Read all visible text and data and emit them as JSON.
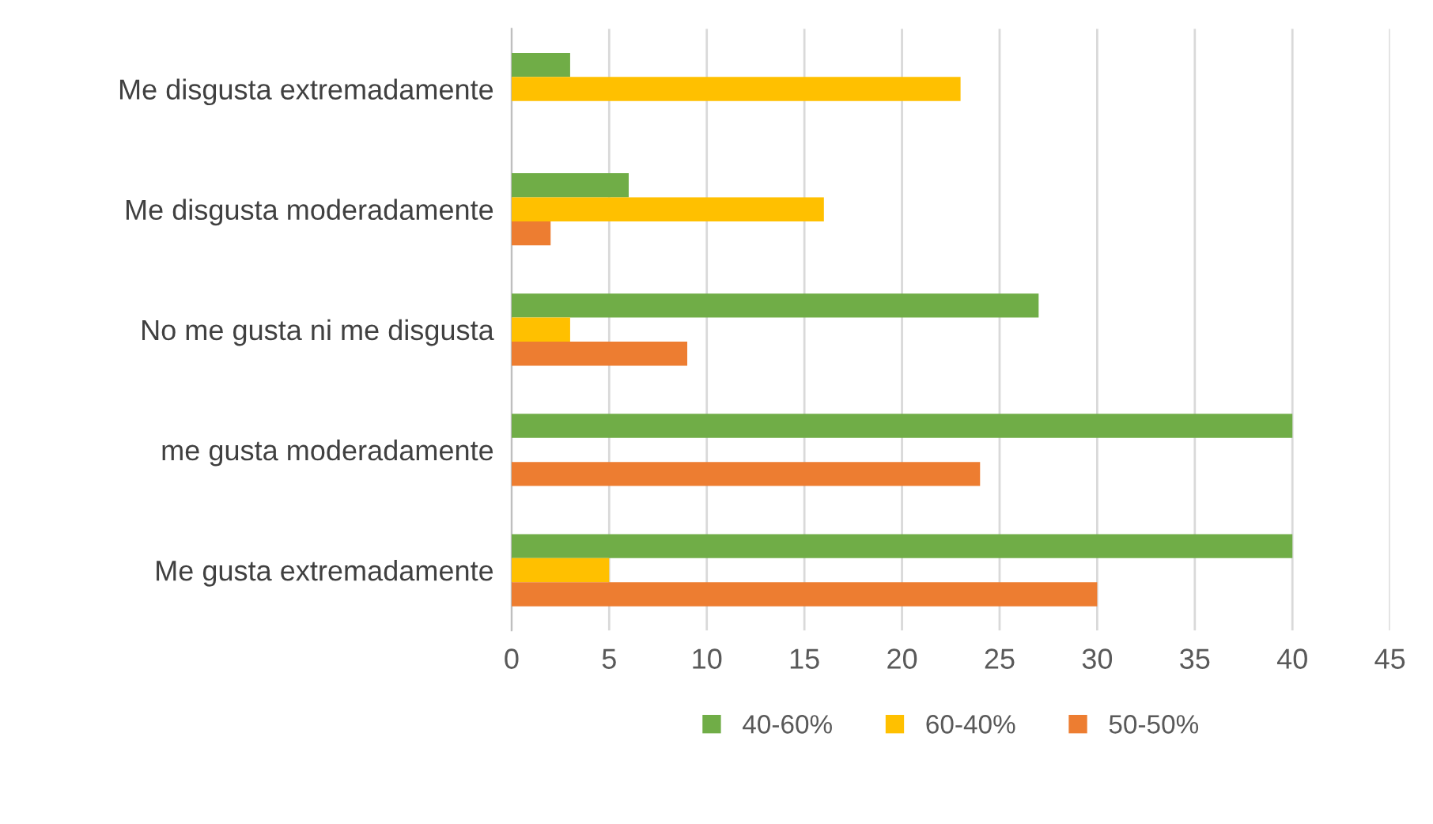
{
  "chart_data": {
    "type": "bar",
    "orientation": "horizontal",
    "categories": [
      "Me disgusta extremadamente",
      "Me disgusta moderadamente",
      "No me gusta ni me disgusta",
      "me gusta moderadamente",
      "Me gusta extremadamente"
    ],
    "series": [
      {
        "name": "40-60%",
        "color": "#70ad47",
        "values": [
          3,
          6,
          27,
          40,
          40
        ]
      },
      {
        "name": "60-40%",
        "color": "#ffc000",
        "values": [
          23,
          16,
          3,
          0,
          5
        ]
      },
      {
        "name": "50-50%",
        "color": "#ed7d31",
        "values": [
          0,
          2,
          9,
          24,
          30
        ]
      }
    ],
    "xlim": [
      0,
      45
    ],
    "xticks": [
      0,
      5,
      10,
      15,
      20,
      25,
      30,
      35,
      40,
      45
    ],
    "grid": "x",
    "legend": "bottom"
  }
}
